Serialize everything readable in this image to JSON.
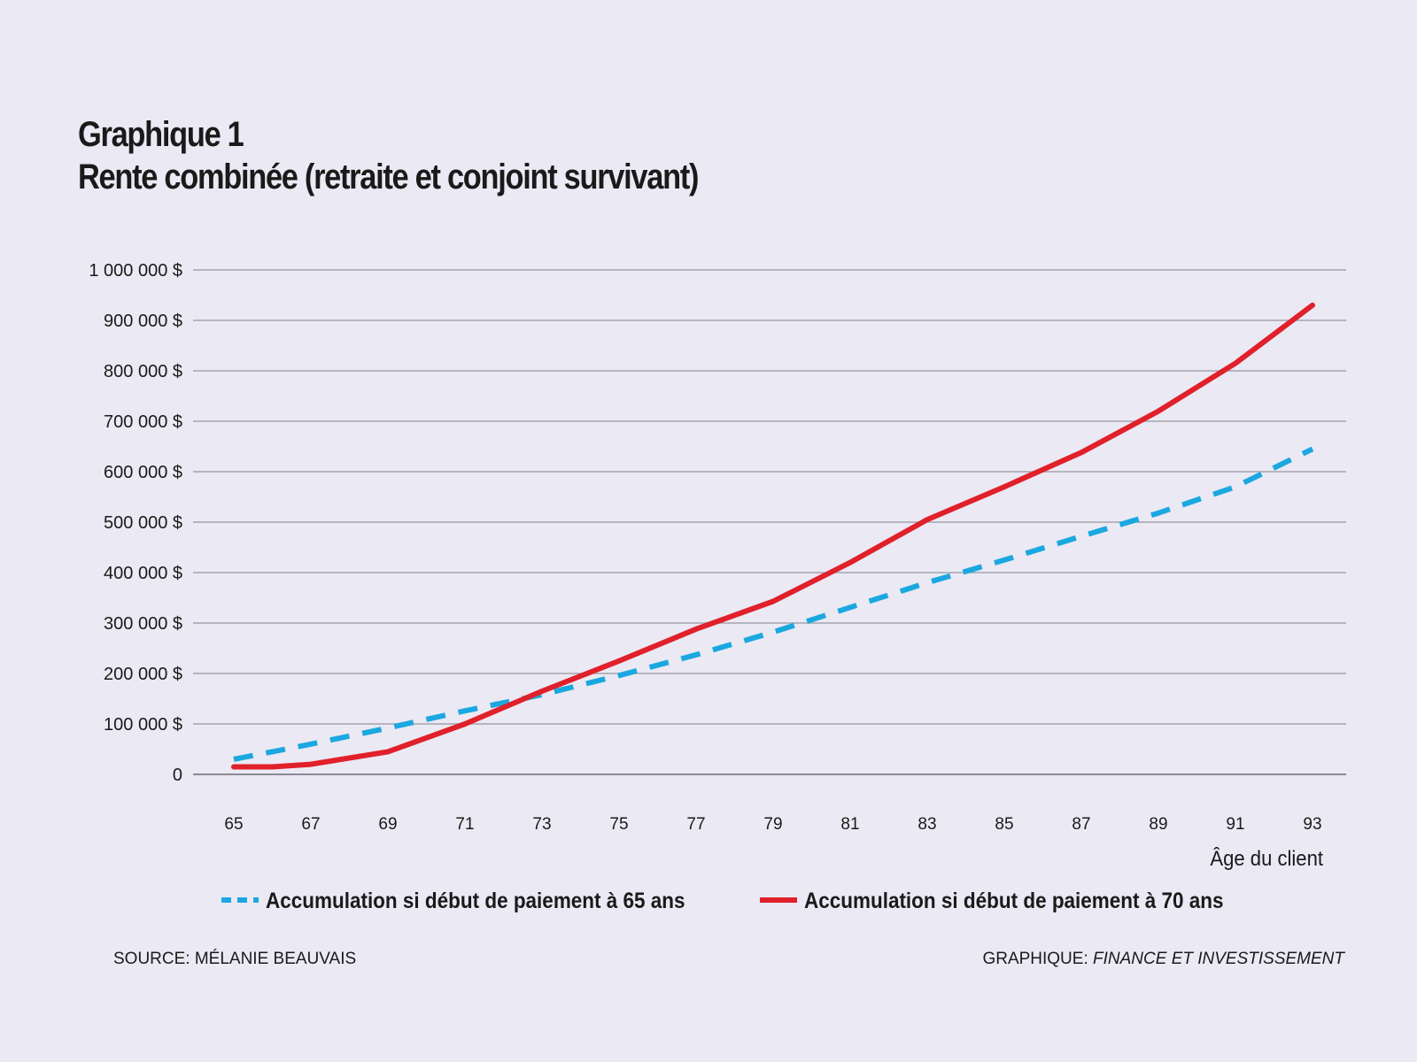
{
  "heading": {
    "line1": "Graphique 1",
    "line2": "Rente combinée (retraite et conjoint survivant)"
  },
  "chart_data": {
    "type": "line",
    "title": "Rente combinée (retraite et conjoint survivant)",
    "xlabel": "Âge du client",
    "ylabel": "",
    "x": [
      65,
      66,
      67,
      69,
      71,
      73,
      75,
      77,
      79,
      81,
      83,
      85,
      87,
      89,
      91,
      93
    ],
    "x_ticks": [
      65,
      67,
      69,
      71,
      73,
      75,
      77,
      79,
      81,
      83,
      85,
      87,
      89,
      91,
      93
    ],
    "x_tick_labels": [
      "65",
      "67",
      "69",
      "71",
      "73",
      "75",
      "77",
      "79",
      "81",
      "83",
      "85",
      "87",
      "89",
      "91",
      "93"
    ],
    "xlim": [
      65,
      93
    ],
    "y_ticks": [
      0,
      100000,
      200000,
      300000,
      400000,
      500000,
      600000,
      700000,
      800000,
      900000,
      1000000
    ],
    "y_tick_labels": [
      "0",
      "100 000 $",
      "200 000 $",
      "300 000 $",
      "400 000 $",
      "500 000 $",
      "600 000 $",
      "700 000 $",
      "800 000 $",
      "900 000 $",
      "1 000 000 $"
    ],
    "ylim": [
      0,
      1000000
    ],
    "grid": true,
    "legend_position": "bottom",
    "series": [
      {
        "name": "Accumulation si début de paiement à 65 ans",
        "style": "dashed",
        "color": "#1ba8e0",
        "values": [
          30000,
          45000,
          60000,
          92000,
          126000,
          158000,
          196000,
          237000,
          282000,
          331000,
          380000,
          425000,
          472000,
          518000,
          570000,
          645000
        ]
      },
      {
        "name": "Accumulation si début de paiement à 70 ans",
        "style": "solid",
        "color": "#e0202a",
        "values": [
          15000,
          15000,
          20000,
          45000,
          100000,
          165000,
          225000,
          288000,
          343000,
          420000,
          505000,
          570000,
          638000,
          720000,
          815000,
          930000
        ]
      }
    ]
  },
  "footer": {
    "source": "SOURCE: MÉLANIE BEAUVAIS",
    "credit_prefix": "GRAPHIQUE: ",
    "credit_org": "FINANCE ET INVESTISSEMENT"
  }
}
